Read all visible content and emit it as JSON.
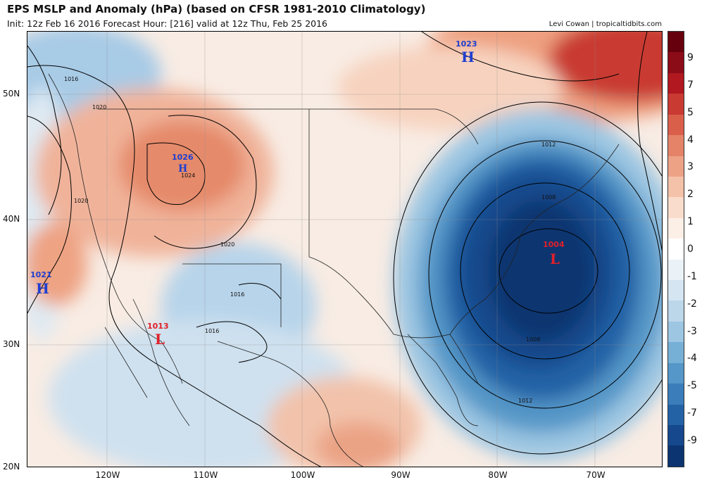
{
  "header": {
    "title": "EPS MSLP and Anomaly (hPa) (based on CFSR 1981-2010 Climatology)",
    "subtitle": "Init: 12z Feb 16 2016   Forecast Hour: [216]   valid at 12z Thu, Feb 25 2016",
    "credit": "Levi Cowan | tropicaltidbits.com"
  },
  "axes": {
    "lat_labels": [
      "50N",
      "40N",
      "30N",
      "20N"
    ],
    "lon_labels": [
      "120W",
      "110W",
      "100W",
      "90W",
      "80W",
      "70W"
    ]
  },
  "colorbar": {
    "labels": [
      "9",
      "7",
      "5",
      "4",
      "3",
      "2",
      "1",
      "0",
      "-1",
      "-2",
      "-3",
      "-4",
      "-5",
      "-7",
      "-9"
    ],
    "colors": [
      "#67000d",
      "#8b0b17",
      "#b1181f",
      "#c93a32",
      "#da5f4b",
      "#e58368",
      "#eda286",
      "#f4c2a8",
      "#f9dccb",
      "#fcefe6",
      "#ffffff",
      "#eaf2f8",
      "#d5e5f1",
      "#bcd7ea",
      "#9cc6e2",
      "#76b0d7",
      "#5497c8",
      "#3a7dba",
      "#2462a6",
      "#15488c",
      "#0b3470"
    ]
  },
  "centers": [
    {
      "type": "H",
      "value": "1023",
      "color": "#1f3fd0"
    },
    {
      "type": "H",
      "value": "1026",
      "color": "#1f3fd0"
    },
    {
      "type": "H",
      "value": "1021",
      "color": "#1f3fd0"
    },
    {
      "type": "L",
      "value": "1013",
      "color": "#e0202a"
    },
    {
      "type": "L",
      "value": "1004",
      "color": "#e0202a"
    }
  ],
  "isobar_labels": [
    "1016",
    "1020",
    "1024",
    "1020",
    "1020",
    "1016",
    "1016",
    "1012",
    "1008",
    "1008",
    "1012"
  ]
}
